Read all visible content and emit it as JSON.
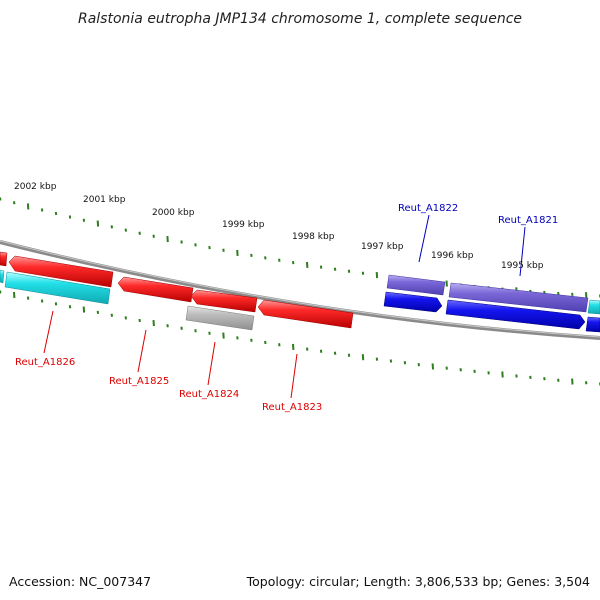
{
  "title": "Ralstonia eutropha JMP134 chromosome 1, complete sequence",
  "footer": {
    "accession": "Accession: NC_007347",
    "summary": "Topology: circular; Length: 3,806,533 bp; Genes: 3,504"
  },
  "colors": {
    "backbone": "#8a8a8a",
    "tick": "#2e7d1e",
    "reverse_strand_gene": "#ee1111",
    "forward_strand_gene": "#1010ee",
    "forward_strand_highlight": "#7b68d8",
    "cds_cyan": "#22e0e8",
    "pseudo_gray": "#b4b4b4",
    "label_red": "#dd0000",
    "label_blue": "#0000bb"
  },
  "scale_labels": [
    "2002 kbp",
    "2001 kbp",
    "2000 kbp",
    "1999 kbp",
    "1998 kbp",
    "1997 kbp",
    "1996 kbp",
    "1995 kbp"
  ],
  "gene_labels": [
    {
      "name": "Reut_A1826",
      "color_key": "label_red"
    },
    {
      "name": "Reut_A1825",
      "color_key": "label_red"
    },
    {
      "name": "Reut_A1824",
      "color_key": "label_red"
    },
    {
      "name": "Reut_A1823",
      "color_key": "label_red"
    },
    {
      "name": "Reut_A1822",
      "color_key": "label_blue"
    },
    {
      "name": "Reut_A1821",
      "color_key": "label_blue"
    }
  ]
}
